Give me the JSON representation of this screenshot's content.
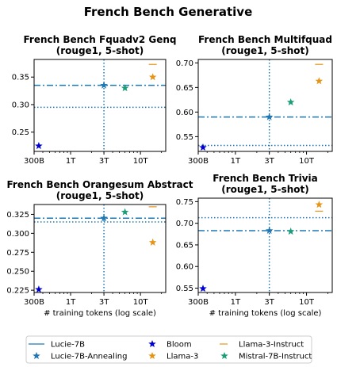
{
  "figure_title": "French Bench Generative",
  "legend": {
    "entries": [
      {
        "label": "Lucie-7B",
        "color": "#1f77b4",
        "marker": "line"
      },
      {
        "label": "Lucie-7B-Annealing",
        "color": "#1f77b4",
        "marker": "star"
      },
      {
        "label": "Bloom",
        "color": "#0000cc",
        "marker": "star"
      },
      {
        "label": "Llama-3",
        "color": "#e69416",
        "marker": "star"
      },
      {
        "label": "Llama-3-Instruct",
        "color": "#e69416",
        "marker": "dash"
      },
      {
        "label": "Mistral-7B-Instruct",
        "color": "#1a9e77",
        "marker": "star"
      }
    ]
  },
  "chart_data": [
    {
      "type": "scatter",
      "title": [
        "French Bench Fquadv2 Genq",
        "(rouge1, 5-shot)"
      ],
      "xlabel": "",
      "xscale": "log",
      "xlim": [
        300,
        23000
      ],
      "xticks": [
        {
          "value": 300,
          "label": "300B"
        },
        {
          "value": 1000,
          "label": "1T"
        },
        {
          "value": 3000,
          "label": "3T"
        },
        {
          "value": 10000,
          "label": "10T"
        }
      ],
      "ylim": [
        0.215,
        0.382
      ],
      "yticks": [
        {
          "value": 0.25,
          "label": "0.25"
        },
        {
          "value": 0.3,
          "label": "0.30"
        },
        {
          "value": 0.35,
          "label": "0.35"
        }
      ],
      "lucie_hline": 0.335,
      "lucie_dotted_hline": 0.295,
      "vline": 3000,
      "points": [
        {
          "series": "Bloom",
          "x": 350,
          "y": 0.225
        },
        {
          "series": "Lucie-7B-Annealing",
          "x": 3000,
          "y": 0.335
        },
        {
          "series": "Mistral-7B-Instruct",
          "x": 6000,
          "y": 0.33
        },
        {
          "series": "Llama-3",
          "x": 15000,
          "y": 0.35
        },
        {
          "series": "Llama-3-Instruct",
          "x": 15000,
          "y": 0.373
        }
      ]
    },
    {
      "type": "scatter",
      "title": [
        "French Bench Multifquad",
        "(rouge1, 5-shot)"
      ],
      "xlabel": "",
      "xscale": "log",
      "xlim": [
        300,
        23000
      ],
      "xticks": [
        {
          "value": 300,
          "label": "300B"
        },
        {
          "value": 1000,
          "label": "1T"
        },
        {
          "value": 3000,
          "label": "3T"
        },
        {
          "value": 10000,
          "label": "10T"
        }
      ],
      "ylim": [
        0.52,
        0.707
      ],
      "yticks": [
        {
          "value": 0.55,
          "label": "0.55"
        },
        {
          "value": 0.6,
          "label": "0.60"
        },
        {
          "value": 0.65,
          "label": "0.65"
        },
        {
          "value": 0.7,
          "label": "0.70"
        }
      ],
      "lucie_hline": 0.59,
      "lucie_dotted_hline": 0.532,
      "vline": 3000,
      "points": [
        {
          "series": "Bloom",
          "x": 350,
          "y": 0.528
        },
        {
          "series": "Lucie-7B-Annealing",
          "x": 3000,
          "y": 0.59
        },
        {
          "series": "Mistral-7B-Instruct",
          "x": 6000,
          "y": 0.62
        },
        {
          "series": "Llama-3",
          "x": 15000,
          "y": 0.663
        },
        {
          "series": "Llama-3-Instruct",
          "x": 15000,
          "y": 0.697
        }
      ]
    },
    {
      "type": "scatter",
      "title": [
        "French Bench Orangesum Abstract",
        "(rouge1, 5-shot)"
      ],
      "xlabel": "# training tokens (log scale)",
      "xscale": "log",
      "xlim": [
        300,
        23000
      ],
      "xticks": [
        {
          "value": 300,
          "label": "300B"
        },
        {
          "value": 1000,
          "label": "1T"
        },
        {
          "value": 3000,
          "label": "3T"
        },
        {
          "value": 10000,
          "label": "10T"
        }
      ],
      "ylim": [
        0.222,
        0.338
      ],
      "yticks": [
        {
          "value": 0.225,
          "label": "0.225"
        },
        {
          "value": 0.25,
          "label": "0.250"
        },
        {
          "value": 0.275,
          "label": "0.275"
        },
        {
          "value": 0.3,
          "label": "0.300"
        },
        {
          "value": 0.325,
          "label": "0.325"
        }
      ],
      "lucie_hline": 0.32,
      "lucie_dotted_hline": 0.315,
      "vline": 3000,
      "points": [
        {
          "series": "Bloom",
          "x": 350,
          "y": 0.226
        },
        {
          "series": "Lucie-7B-Annealing",
          "x": 3000,
          "y": 0.32
        },
        {
          "series": "Mistral-7B-Instruct",
          "x": 6000,
          "y": 0.328
        },
        {
          "series": "Llama-3",
          "x": 15000,
          "y": 0.288
        },
        {
          "series": "Llama-3-Instruct",
          "x": 15000,
          "y": 0.335
        }
      ]
    },
    {
      "type": "scatter",
      "title": [
        "French Bench Trivia",
        "(rouge1, 5-shot)"
      ],
      "xlabel": "# training tokens (log scale)",
      "xscale": "log",
      "xlim": [
        300,
        23000
      ],
      "xticks": [
        {
          "value": 300,
          "label": "300B"
        },
        {
          "value": 1000,
          "label": "1T"
        },
        {
          "value": 3000,
          "label": "3T"
        },
        {
          "value": 10000,
          "label": "10T"
        }
      ],
      "ylim": [
        0.54,
        0.758
      ],
      "yticks": [
        {
          "value": 0.55,
          "label": "0.55"
        },
        {
          "value": 0.6,
          "label": "0.60"
        },
        {
          "value": 0.65,
          "label": "0.65"
        },
        {
          "value": 0.7,
          "label": "0.70"
        },
        {
          "value": 0.75,
          "label": "0.75"
        }
      ],
      "lucie_hline": 0.683,
      "lucie_dotted_hline": 0.713,
      "vline": 3000,
      "points": [
        {
          "series": "Bloom",
          "x": 350,
          "y": 0.549
        },
        {
          "series": "Lucie-7B-Annealing",
          "x": 3000,
          "y": 0.683
        },
        {
          "series": "Mistral-7B-Instruct",
          "x": 6000,
          "y": 0.681
        },
        {
          "series": "Llama-3",
          "x": 15000,
          "y": 0.743
        },
        {
          "series": "Llama-3-Instruct",
          "x": 15000,
          "y": 0.728
        }
      ]
    }
  ]
}
